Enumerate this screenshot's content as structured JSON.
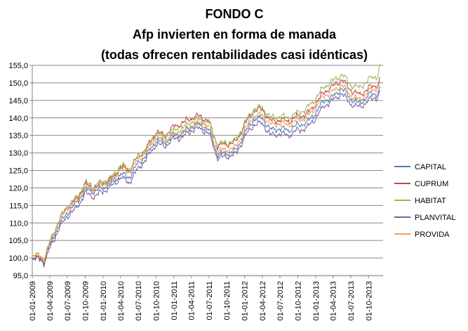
{
  "chart_data": {
    "type": "line",
    "title_lines": [
      "FONDO C",
      "Afp invierten en forma de manada",
      "(todas ofrecen rentabilidades casi idénticas)"
    ],
    "xlabel": "",
    "ylabel": "",
    "ylim": [
      95,
      155
    ],
    "y_ticks": [
      "95,0",
      "100,0",
      "105,0",
      "110,0",
      "115,0",
      "120,0",
      "125,0",
      "130,0",
      "135,0",
      "140,0",
      "145,0",
      "150,0",
      "155,0"
    ],
    "x_ticks": [
      "01-01-2009",
      "01-04-2009",
      "01-07-2009",
      "01-10-2009",
      "01-01-2010",
      "01-04-2010",
      "01-07-2010",
      "01-10-2010",
      "01-01-2011",
      "01-04-2011",
      "01-07-2011",
      "01-10-2011",
      "01-01-2012",
      "01-04-2012",
      "01-07-2012",
      "01-10-2012",
      "01-01-2013",
      "01-04-2013",
      "01-07-2013",
      "01-10-2013"
    ],
    "grid": "horizontal",
    "legend_position": "right",
    "x": [
      "2009-01-01",
      "2009-02-15",
      "2009-03-01",
      "2009-04-01",
      "2009-05-15",
      "2009-07-01",
      "2009-08-15",
      "2009-10-01",
      "2009-11-15",
      "2010-01-01",
      "2010-02-15",
      "2010-04-01",
      "2010-05-15",
      "2010-07-01",
      "2010-08-15",
      "2010-10-01",
      "2010-11-15",
      "2011-01-01",
      "2011-02-15",
      "2011-04-01",
      "2011-05-15",
      "2011-07-01",
      "2011-08-15",
      "2011-10-01",
      "2011-11-15",
      "2012-01-01",
      "2012-02-15",
      "2012-04-01",
      "2012-05-15",
      "2012-07-01",
      "2012-08-15",
      "2012-10-01",
      "2012-11-15",
      "2013-01-01",
      "2013-02-15",
      "2013-04-01",
      "2013-05-15",
      "2013-07-01",
      "2013-08-15",
      "2013-10-01",
      "2013-11-15",
      "2013-11-30"
    ],
    "series": [
      {
        "name": "CAPITAL",
        "color": "#4a7ebb",
        "values": [
          100.0,
          99.6,
          98.8,
          103.5,
          109.0,
          113.0,
          115.5,
          119.5,
          119.0,
          120.0,
          121.5,
          124.0,
          123.0,
          127.0,
          129.5,
          133.5,
          133.0,
          135.0,
          135.5,
          137.5,
          138.0,
          136.5,
          129.5,
          130.0,
          130.5,
          135.5,
          139.5,
          140.0,
          136.5,
          137.0,
          136.5,
          138.0,
          138.5,
          141.5,
          145.0,
          146.0,
          148.5,
          145.5,
          144.0,
          146.5,
          147.0,
          148.5
        ]
      },
      {
        "name": "CUPRUM",
        "color": "#be4b48",
        "values": [
          100.0,
          99.8,
          99.2,
          104.0,
          110.0,
          114.5,
          116.5,
          121.0,
          120.0,
          121.5,
          122.5,
          126.0,
          125.0,
          129.0,
          131.5,
          136.0,
          135.0,
          137.5,
          138.5,
          140.0,
          140.5,
          139.0,
          132.0,
          132.5,
          133.0,
          138.0,
          142.0,
          142.5,
          139.0,
          139.5,
          139.0,
          140.5,
          141.0,
          144.0,
          147.5,
          149.0,
          151.0,
          148.0,
          146.5,
          148.5,
          149.5,
          151.0
        ]
      },
      {
        "name": "HABITAT",
        "color": "#98b954",
        "values": [
          101.0,
          100.5,
          99.8,
          104.5,
          110.5,
          115.0,
          117.0,
          121.5,
          120.5,
          122.0,
          123.0,
          126.5,
          125.5,
          129.0,
          131.0,
          135.5,
          134.5,
          136.5,
          137.0,
          139.0,
          139.5,
          138.5,
          132.5,
          133.0,
          133.5,
          138.5,
          142.5,
          143.0,
          140.0,
          140.5,
          140.0,
          141.5,
          142.5,
          145.5,
          149.0,
          150.5,
          152.5,
          149.5,
          148.5,
          151.0,
          152.0,
          155.0
        ]
      },
      {
        "name": "PLANVITAL",
        "color": "#7d60a0",
        "values": [
          100.0,
          99.4,
          98.5,
          102.5,
          108.0,
          112.0,
          114.0,
          118.5,
          117.5,
          119.0,
          120.5,
          123.0,
          121.5,
          125.5,
          128.5,
          132.5,
          132.0,
          134.0,
          134.5,
          136.5,
          137.0,
          135.5,
          128.5,
          129.0,
          129.5,
          134.5,
          138.0,
          138.5,
          135.0,
          135.5,
          135.0,
          136.5,
          137.0,
          140.0,
          143.5,
          145.0,
          147.0,
          144.0,
          143.0,
          145.0,
          146.0,
          147.5
        ]
      },
      {
        "name": "PROVIDA",
        "color": "#f59d56",
        "values": [
          101.0,
          100.3,
          99.5,
          104.0,
          110.0,
          114.5,
          116.0,
          120.5,
          119.5,
          121.0,
          122.0,
          125.5,
          124.5,
          128.0,
          130.5,
          134.5,
          133.5,
          135.5,
          136.0,
          138.0,
          138.5,
          137.5,
          130.5,
          131.0,
          131.5,
          136.5,
          140.5,
          141.0,
          138.0,
          138.5,
          138.0,
          139.5,
          140.0,
          143.0,
          146.5,
          147.5,
          149.5,
          146.5,
          145.0,
          147.5,
          148.5,
          150.0
        ]
      }
    ]
  }
}
